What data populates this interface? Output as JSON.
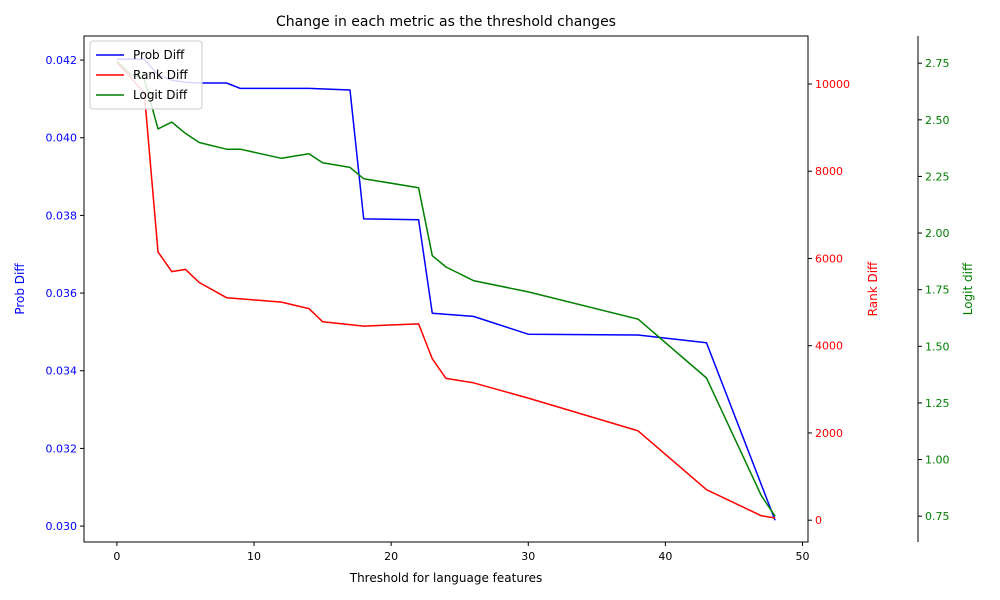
{
  "chart_data": {
    "type": "line",
    "title": "Change in each metric as the threshold changes",
    "xlabel": "Threshold for language features",
    "xlim": [
      -2.4,
      50.4
    ],
    "xticks": [
      0,
      10,
      20,
      30,
      40,
      50
    ],
    "grid": false,
    "legend_position": "upper-left",
    "axes": [
      {
        "id": "prob",
        "label": "Prob Diff",
        "color": "#0000ff",
        "ylim": [
          0.02959,
          0.04262
        ],
        "ticks": [
          0.03,
          0.032,
          0.034,
          0.036,
          0.038,
          0.04,
          0.042
        ],
        "tick_labels": [
          "0.030",
          "0.032",
          "0.034",
          "0.036",
          "0.038",
          "0.040",
          "0.042"
        ]
      },
      {
        "id": "rank",
        "label": "Rank Diff",
        "color": "#ff0000",
        "ylim": [
          -500,
          11100
        ],
        "ticks": [
          0,
          2000,
          4000,
          6000,
          8000,
          10000
        ],
        "tick_labels": [
          "0",
          "2000",
          "4000",
          "6000",
          "8000",
          "10000"
        ]
      },
      {
        "id": "logit",
        "label": "Logit diff",
        "color": "#008000",
        "ylim": [
          0.636,
          2.87
        ],
        "ticks": [
          0.75,
          1.0,
          1.25,
          1.5,
          1.75,
          2.0,
          2.25,
          2.5,
          2.75
        ],
        "tick_labels": [
          "0.75",
          "1.00",
          "1.25",
          "1.50",
          "1.75",
          "2.00",
          "2.25",
          "2.50",
          "2.75"
        ]
      }
    ],
    "series": [
      {
        "name": "Prob Diff",
        "axis": "prob",
        "color": "#0000ff",
        "x": [
          0,
          2,
          3,
          4,
          5,
          6,
          8,
          9,
          12,
          14,
          17,
          18,
          22,
          23,
          26,
          30,
          38,
          43,
          48
        ],
        "y": [
          0.04202,
          0.04202,
          0.04162,
          0.04148,
          0.04143,
          0.04141,
          0.04141,
          0.04127,
          0.04127,
          0.04127,
          0.04123,
          0.03791,
          0.03789,
          0.03548,
          0.0354,
          0.03494,
          0.03492,
          0.03472,
          0.03015
        ]
      },
      {
        "name": "Rank Diff",
        "axis": "rank",
        "color": "#ff0000",
        "x": [
          0,
          2,
          3,
          4,
          5,
          6,
          8,
          12,
          14,
          15,
          18,
          22,
          23,
          24,
          26,
          30,
          38,
          43,
          47,
          48
        ],
        "y": [
          10500,
          9800,
          6150,
          5700,
          5750,
          5450,
          5100,
          5000,
          4850,
          4550,
          4450,
          4500,
          3700,
          3250,
          3150,
          2800,
          2050,
          700,
          100,
          50
        ]
      },
      {
        "name": "Logit Diff",
        "axis": "logit",
        "color": "#008000",
        "x": [
          0,
          1,
          2,
          3,
          4,
          5,
          6,
          8,
          9,
          12,
          14,
          15,
          17,
          18,
          22,
          23,
          24,
          26,
          30,
          38,
          43,
          47,
          48
        ],
        "y": [
          2.76,
          2.7,
          2.68,
          2.46,
          2.49,
          2.44,
          2.4,
          2.37,
          2.37,
          2.33,
          2.35,
          2.31,
          2.29,
          2.24,
          2.2,
          1.9,
          1.85,
          1.79,
          1.74,
          1.62,
          1.36,
          0.84,
          0.75
        ]
      }
    ]
  }
}
